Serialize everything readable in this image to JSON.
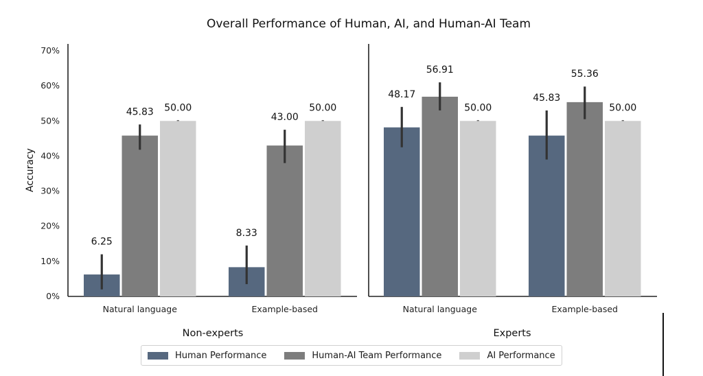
{
  "chart_data": {
    "type": "bar",
    "title": "Overall Performance of Human, AI, and Human-AI Team",
    "ylabel": "Accuracy",
    "ylim": [
      0,
      70
    ],
    "yticks": [
      "0%",
      "10%",
      "20%",
      "30%",
      "40%",
      "50%",
      "60%",
      "70%"
    ],
    "series_colors": [
      "#56687f",
      "#7d7d7d",
      "#cfcfcf"
    ],
    "legend": [
      "Human Performance",
      "Human-AI Team Performance",
      "AI Performance"
    ],
    "legend_position": "bottom-center",
    "panels": [
      {
        "name": "Non-experts",
        "categories": [
          "Natural language",
          "Example-based"
        ],
        "series": [
          {
            "values": [
              6.25,
              8.33
            ],
            "err_low": [
              2.0,
              3.5
            ],
            "err_high": [
              12.0,
              14.5
            ]
          },
          {
            "values": [
              45.83,
              43.0
            ],
            "err_low": [
              41.8,
              38.0
            ],
            "err_high": [
              49.0,
              47.5
            ]
          },
          {
            "values": [
              50.0,
              50.0
            ],
            "err_low": [
              50.0,
              50.0
            ],
            "err_high": [
              50.2,
              50.2
            ]
          }
        ],
        "labels": [
          [
            "6.25",
            "8.33"
          ],
          [
            "45.83",
            "43.00"
          ],
          [
            "50.00",
            "50.00"
          ]
        ]
      },
      {
        "name": "Experts",
        "categories": [
          "Natural language",
          "Example-based"
        ],
        "series": [
          {
            "values": [
              48.17,
              45.83
            ],
            "err_low": [
              42.5,
              39.0
            ],
            "err_high": [
              54.0,
              53.0
            ]
          },
          {
            "values": [
              56.91,
              55.36
            ],
            "err_low": [
              53.0,
              50.5
            ],
            "err_high": [
              61.0,
              59.8
            ]
          },
          {
            "values": [
              50.0,
              50.0
            ],
            "err_low": [
              50.0,
              50.0
            ],
            "err_high": [
              50.2,
              50.2
            ]
          }
        ],
        "labels": [
          [
            "48.17",
            "45.83"
          ],
          [
            "56.91",
            "55.36"
          ],
          [
            "50.00",
            "50.00"
          ]
        ]
      }
    ]
  }
}
